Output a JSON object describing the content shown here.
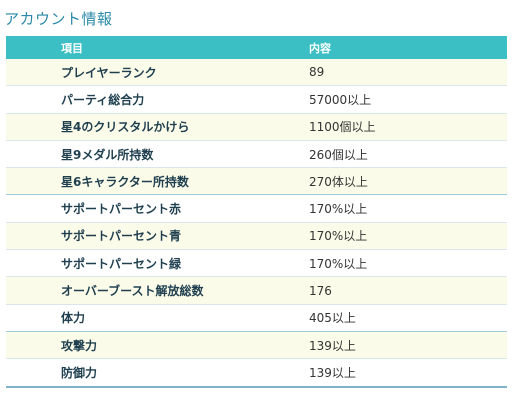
{
  "title": "アカウント情報",
  "table": {
    "headers": [
      "項目",
      "内容"
    ],
    "rows": [
      {
        "key": "プレイヤーランク",
        "value": "89"
      },
      {
        "key": "パーティ総合力",
        "value": "57000以上"
      },
      {
        "key": "星4のクリスタルかけら",
        "value": "1100個以上"
      },
      {
        "key": "星9メダル所持数",
        "value": "260個以上"
      },
      {
        "key": "星6キャラクター所持数",
        "value": "270体以上"
      },
      {
        "key": "サポートパーセント赤",
        "value": "170%以上"
      },
      {
        "key": "サポートパーセント青",
        "value": "170%以上"
      },
      {
        "key": "サポートパーセント緑",
        "value": "170%以上"
      },
      {
        "key": "オーバーブースト解放総数",
        "value": "176"
      },
      {
        "key": "体力",
        "value": "405以上"
      },
      {
        "key": "攻撃力",
        "value": "139以上"
      },
      {
        "key": "防御力",
        "value": "139以上"
      }
    ]
  },
  "colors": {
    "title": "#2a8aa8",
    "header_bg": "#3bbfc4",
    "row_alt_bg": "#fbfbe9"
  }
}
